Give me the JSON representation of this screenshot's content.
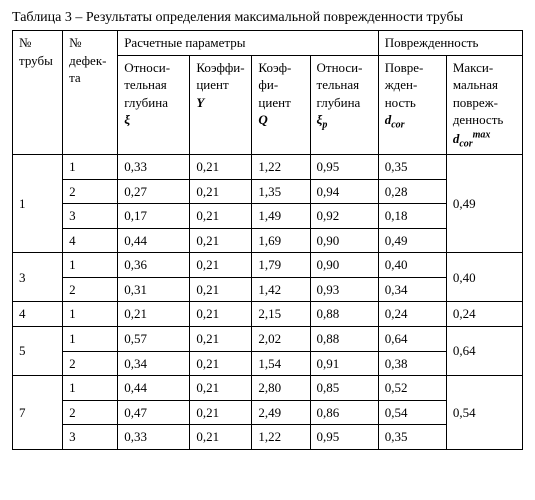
{
  "caption": "Таблица 3 – Результаты определения максимальной поврежденности трубы",
  "head": {
    "group_calc": "Расчетные параметры",
    "group_damage": "Поврежденность",
    "pipe_no": "№ трубы",
    "defect_no": "№ дефек­та",
    "rel_depth": "Относи­тельная глубина",
    "rel_depth_sym": "ξ",
    "coef_y_1": "Коэффи­циент",
    "coef_y_sym": "Y",
    "coef_q_1": "Коэф­фи­циент",
    "coef_q_sym": "Q",
    "rel_depth_p": "Относи­тельная глуби­на",
    "rel_depth_p_sym": "ξ",
    "rel_depth_p_sub": "p",
    "damage": "Повре­жден­ность",
    "damage_sym": "d",
    "damage_sub": "cor",
    "max_damage": "Макси­мальная повреж­денность",
    "max_damage_sym": "d",
    "max_damage_sub": "cor",
    "max_damage_sup": "max"
  },
  "groups": [
    {
      "pipe": "1",
      "max": "0,49",
      "rows": [
        {
          "d": "1",
          "xi": "0,33",
          "y": "0,21",
          "q": "1,22",
          "xip": "0,95",
          "dcor": "0,35"
        },
        {
          "d": "2",
          "xi": "0,27",
          "y": "0,21",
          "q": "1,35",
          "xip": "0,94",
          "dcor": "0,28"
        },
        {
          "d": "3",
          "xi": "0,17",
          "y": "0,21",
          "q": "1,49",
          "xip": "0,92",
          "dcor": "0,18"
        },
        {
          "d": "4",
          "xi": "0,44",
          "y": "0,21",
          "q": "1,69",
          "xip": "0,90",
          "dcor": "0,49"
        }
      ]
    },
    {
      "pipe": "3",
      "max": "0,40",
      "rows": [
        {
          "d": "1",
          "xi": "0,36",
          "y": "0,21",
          "q": "1,79",
          "xip": "0,90",
          "dcor": "0,40"
        },
        {
          "d": "2",
          "xi": "0,31",
          "y": "0,21",
          "q": "1,42",
          "xip": "0,93",
          "dcor": "0,34"
        }
      ]
    },
    {
      "pipe": "4",
      "max": "0,24",
      "rows": [
        {
          "d": "1",
          "xi": "0,21",
          "y": "0,21",
          "q": "2,15",
          "xip": "0,88",
          "dcor": "0,24"
        }
      ]
    },
    {
      "pipe": "5",
      "max": "0,64",
      "rows": [
        {
          "d": "1",
          "xi": "0,57",
          "y": "0,21",
          "q": "2,02",
          "xip": "0,88",
          "dcor": "0,64"
        },
        {
          "d": "2",
          "xi": "0,34",
          "y": "0,21",
          "q": "1,54",
          "xip": "0,91",
          "dcor": "0,38"
        }
      ]
    },
    {
      "pipe": "7",
      "max": "0,54",
      "rows": [
        {
          "d": "1",
          "xi": "0,44",
          "y": "0,21",
          "q": "2,80",
          "xip": "0,85",
          "dcor": "0,52"
        },
        {
          "d": "2",
          "xi": "0,47",
          "y": "0,21",
          "q": "2,49",
          "xip": "0,86",
          "dcor": "0,54"
        },
        {
          "d": "3",
          "xi": "0,33",
          "y": "0,21",
          "q": "1,22",
          "xip": "0,95",
          "dcor": "0,35"
        }
      ]
    }
  ]
}
